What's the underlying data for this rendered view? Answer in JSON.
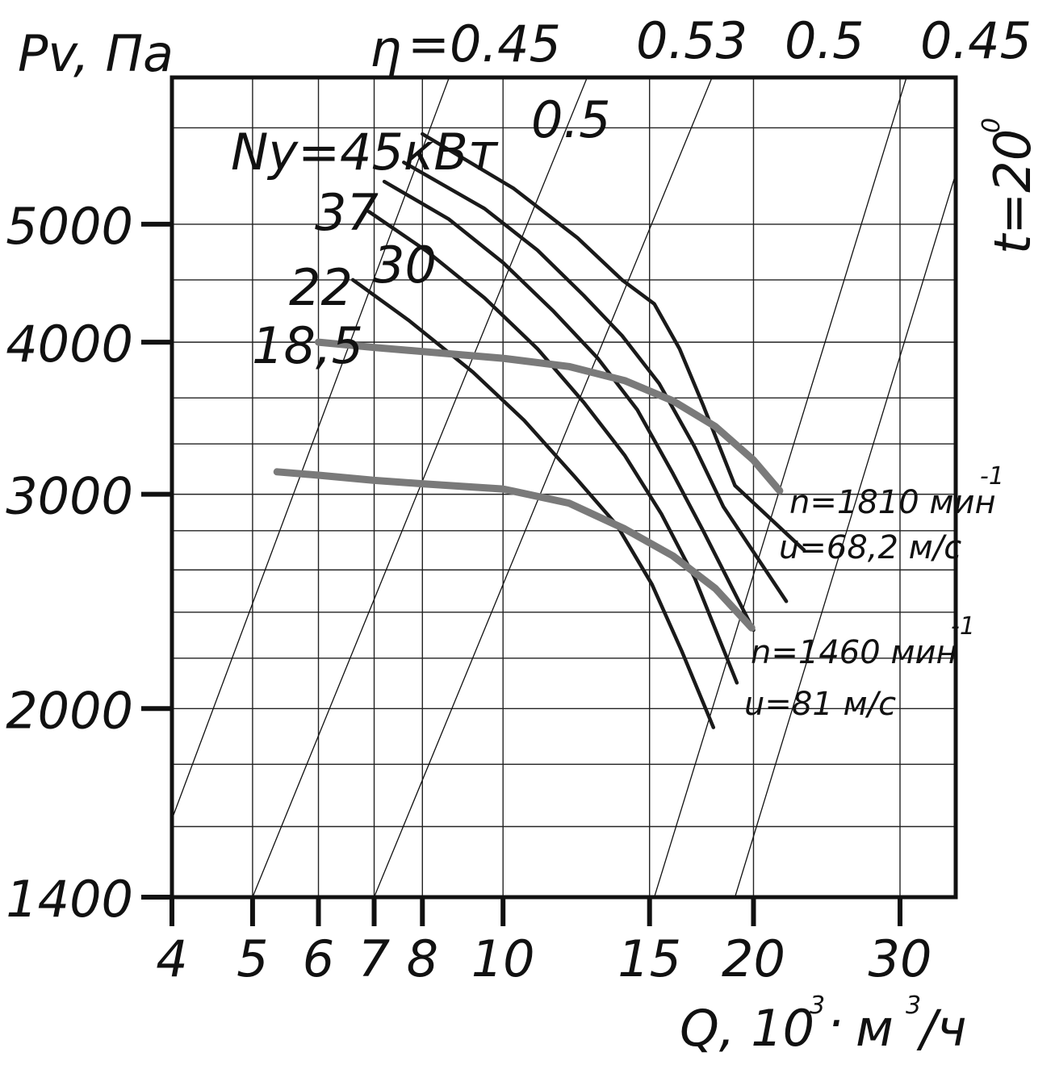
{
  "chart_data": {
    "type": "line",
    "title": "",
    "ylabel": "Pv, Па",
    "xlabel_parts": {
      "q": "Q, 10",
      "exp1": "3",
      "dot": "·",
      "m": "м",
      "exp2": "3",
      "unit": "/ч"
    },
    "x_scale": "log",
    "y_scale": "log",
    "xlim": [
      4,
      35
    ],
    "ylim": [
      1400,
      6600
    ],
    "x_ticks": [
      4,
      5,
      6,
      7,
      8,
      10,
      15,
      20,
      30
    ],
    "x_tick_labels": [
      "4",
      "5",
      "6",
      "7",
      "8",
      "10",
      "15",
      "20",
      "30"
    ],
    "y_ticks": [
      1400,
      2000,
      3000,
      4000,
      5000
    ],
    "y_tick_labels": [
      "1400",
      "2000",
      "3000",
      "4000",
      "5000"
    ],
    "x_grid": [
      4,
      5,
      6,
      7,
      8,
      10,
      15,
      20,
      30
    ],
    "y_grid": [
      1400,
      1600,
      1800,
      2000,
      2200,
      2400,
      2600,
      2800,
      3000,
      3300,
      3600,
      4000,
      4500,
      5000,
      6000
    ],
    "grid": true,
    "efficiency": {
      "symbol": "η",
      "labels": [
        "=0.45",
        "0.5",
        "0.53",
        "0.5",
        "0.45"
      ],
      "lines": [
        [
          [
            3.97,
            1600
          ],
          [
            8.6,
            6580
          ]
        ],
        [
          [
            5.0,
            1400
          ],
          [
            12.6,
            6580
          ]
        ],
        [
          [
            7.0,
            1400
          ],
          [
            17.8,
            6580
          ]
        ],
        [
          [
            15.2,
            1400
          ],
          [
            30.5,
            6580
          ]
        ],
        [
          [
            19.0,
            1400
          ],
          [
            35.0,
            5500
          ]
        ]
      ]
    },
    "temperature_label": {
      "t": "t=20",
      "deg": "0"
    },
    "power_prefix": "Ny=45кВт",
    "power_curves": [
      {
        "name": "45",
        "points": [
          [
            8.0,
            5930
          ],
          [
            10.3,
            5350
          ],
          [
            12.3,
            4870
          ],
          [
            13.9,
            4500
          ],
          [
            15.2,
            4300
          ],
          [
            16.3,
            3950
          ],
          [
            17.4,
            3550
          ],
          [
            19.0,
            3050
          ],
          [
            23.0,
            2700
          ]
        ]
      },
      {
        "name": "37",
        "points": [
          [
            7.6,
            5620
          ],
          [
            9.5,
            5150
          ],
          [
            11.0,
            4760
          ],
          [
            12.5,
            4370
          ],
          [
            13.9,
            4050
          ],
          [
            15.4,
            3700
          ],
          [
            17.0,
            3280
          ],
          [
            18.4,
            2930
          ],
          [
            21.9,
            2450
          ]
        ]
      },
      {
        "name": "30",
        "points": [
          [
            7.2,
            5420
          ],
          [
            8.6,
            5050
          ],
          [
            10.0,
            4650
          ],
          [
            11.5,
            4240
          ],
          [
            13.0,
            3880
          ],
          [
            14.5,
            3520
          ],
          [
            16.0,
            3120
          ],
          [
            17.4,
            2800
          ],
          [
            20.0,
            2320
          ]
        ]
      },
      {
        "name": "22",
        "points": [
          [
            6.9,
            5120
          ],
          [
            8.1,
            4750
          ],
          [
            9.5,
            4350
          ],
          [
            11.0,
            3950
          ],
          [
            12.5,
            3570
          ],
          [
            14.0,
            3230
          ],
          [
            15.5,
            2890
          ],
          [
            17.0,
            2560
          ],
          [
            19.1,
            2100
          ]
        ]
      },
      {
        "name": "18,5",
        "points": [
          [
            6.6,
            4500
          ],
          [
            7.7,
            4170
          ],
          [
            9.2,
            3780
          ],
          [
            10.6,
            3450
          ],
          [
            12.2,
            3100
          ],
          [
            13.7,
            2830
          ],
          [
            15.1,
            2530
          ],
          [
            16.4,
            2230
          ],
          [
            17.9,
            1930
          ]
        ]
      }
    ],
    "power_labels": [
      "37",
      "30",
      "22",
      "18,5"
    ],
    "series": [
      {
        "name": "n=1810 мин-1, u=68,2 м/с",
        "label_line1": "n=1810 мин",
        "label_exp": "-1",
        "label_line2": "u=68,2 м/с",
        "points": [
          [
            6.0,
            4000
          ],
          [
            7.0,
            3960
          ],
          [
            8.0,
            3930
          ],
          [
            10.0,
            3880
          ],
          [
            12.0,
            3820
          ],
          [
            14.0,
            3720
          ],
          [
            16.0,
            3580
          ],
          [
            18.0,
            3410
          ],
          [
            20.0,
            3200
          ],
          [
            21.5,
            3020
          ]
        ]
      },
      {
        "name": "n=1460 мин-1, u=81 м/с",
        "label_line1": "n=1460 мин",
        "label_exp": "-1",
        "label_line2": "u=81 м/с",
        "points": [
          [
            5.35,
            3130
          ],
          [
            6.0,
            3110
          ],
          [
            7.0,
            3080
          ],
          [
            8.0,
            3060
          ],
          [
            10.0,
            3030
          ],
          [
            12.0,
            2950
          ],
          [
            14.0,
            2810
          ],
          [
            16.0,
            2670
          ],
          [
            18.0,
            2510
          ],
          [
            19.9,
            2330
          ]
        ]
      }
    ]
  }
}
